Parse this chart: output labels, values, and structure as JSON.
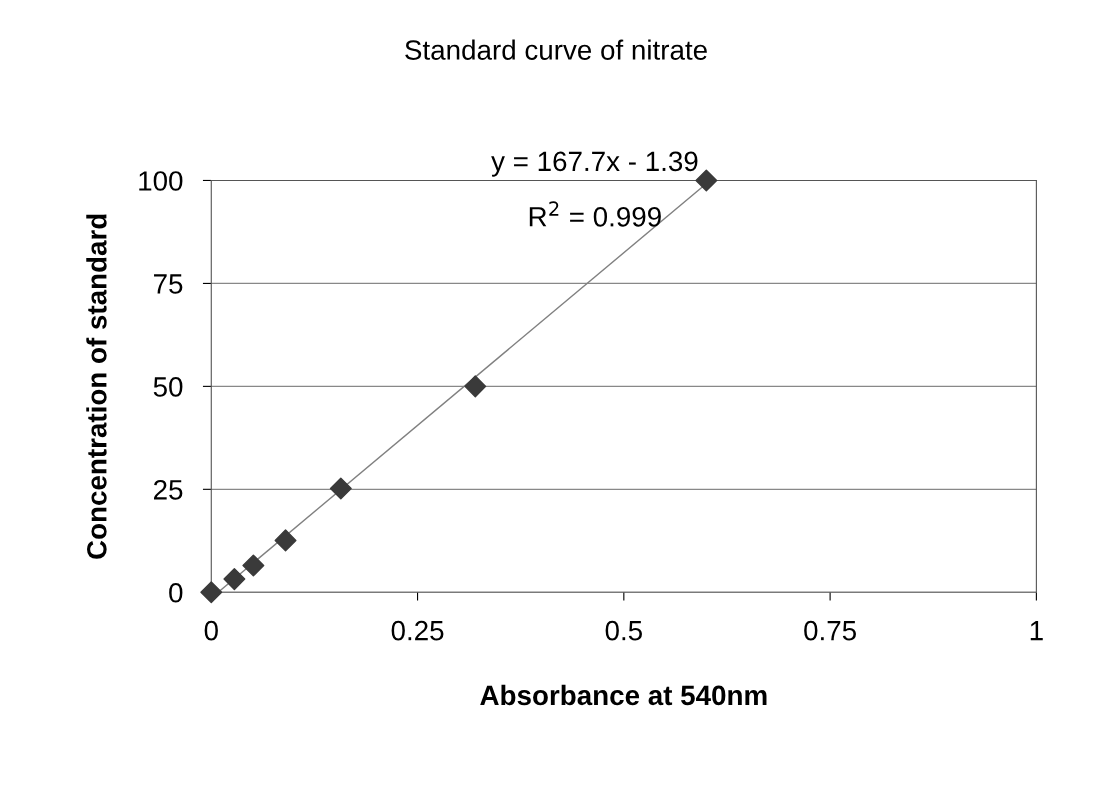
{
  "chart_data": {
    "type": "scatter",
    "title": "Standard curve of nitrate",
    "xlabel": "Absorbance at 540nm",
    "ylabel": "Concentration of standard",
    "annotations": [
      "y = 167.7x - 1.39",
      "R$^{2}$ = 0.999"
    ],
    "series": [
      {
        "color": "#3a3a3a",
        "marker": "diamond",
        "x": [
          0,
          0.028,
          0.051,
          0.09,
          0.157,
          0.32,
          0.6
        ],
        "values": [
          0,
          3.2,
          6.5,
          12.6,
          25.2,
          50,
          100
        ]
      },
      {
        "type": "line",
        "color": "#808080",
        "marker": "none",
        "line_style": "solid",
        "x": [
          0.0083,
          0.6046
        ],
        "values": [
          0,
          100
        ]
      }
    ],
    "xlim": [
      0,
      1
    ],
    "xticks": [
      0,
      {
        "value": 0.25,
        "label": "0.25"
      },
      {
        "value": 0.5,
        "label": "0.5"
      },
      {
        "value": 0.75,
        "label": "0.75"
      },
      1
    ],
    "ylim": [
      0,
      100
    ],
    "yticks": [
      0,
      25,
      50,
      75,
      100
    ],
    "grid": "y"
  }
}
